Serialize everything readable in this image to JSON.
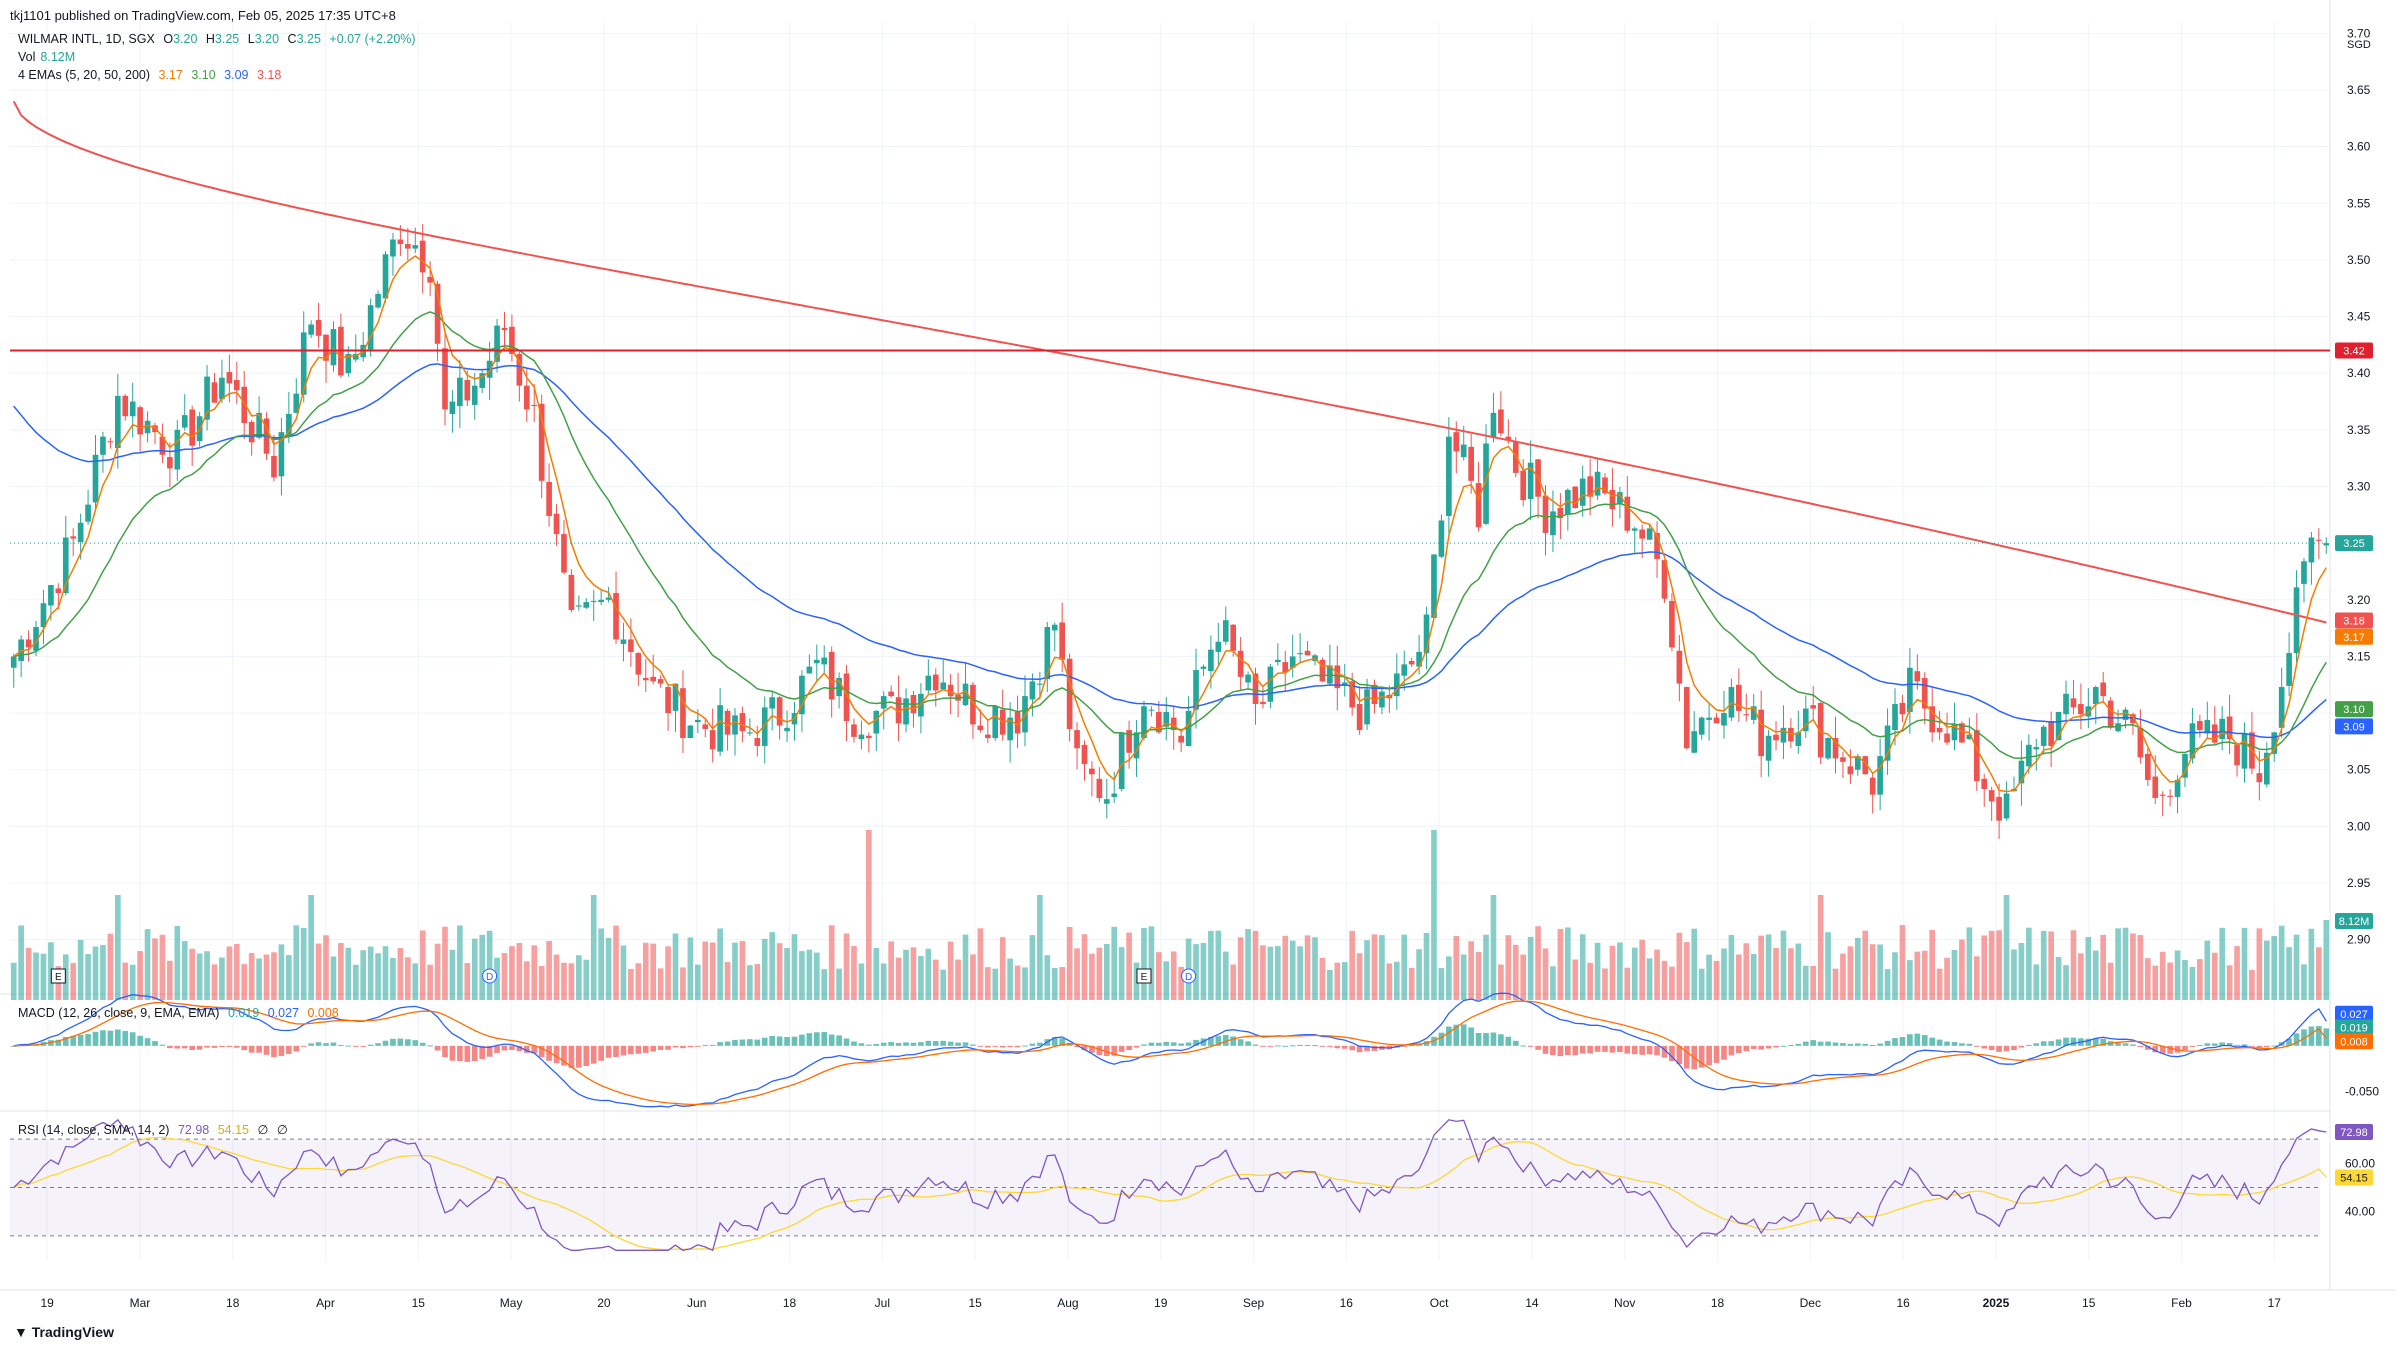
{
  "header": {
    "publisher": "tkj1101 published on TradingView.com, Feb 05, 2025 17:35 UTC+8"
  },
  "footer": {
    "brand": "TradingView"
  },
  "legend": {
    "symbol": "WILMAR INTL, 1D, SGX",
    "ohlc": {
      "o_label": "O",
      "o": "3.20",
      "h_label": "H",
      "h": "3.25",
      "l_label": "L",
      "l": "3.20",
      "c_label": "C",
      "c": "3.25",
      "change": "+0.07 (+2.20%)"
    },
    "vol": {
      "label": "Vol",
      "value": "8.12M"
    },
    "emas": {
      "label": "4 EMAs (5, 20, 50, 200)",
      "v5": "3.17",
      "v20": "3.10",
      "v50": "3.09",
      "v200": "3.18"
    },
    "macd": {
      "label": "MACD (12, 26, close, 9, EMA, EMA)",
      "hist": "0.019",
      "macd": "0.027",
      "signal": "0.008"
    },
    "rsi": {
      "label": "RSI (14, close, SMA, 14, 2)",
      "rsi": "72.98",
      "sma": "54.15",
      "extra1": "∅",
      "extra2": "∅"
    }
  },
  "colors": {
    "up": "#26a69a",
    "down": "#ef5350",
    "ema5": "#f57c00",
    "ema20": "#43a047",
    "ema50": "#2962ff",
    "ema200": "#ef5350",
    "hline": "#e0202e",
    "macd": "#2962ff",
    "signal": "#ff6d00",
    "rsi": "#7e57c2",
    "rsi_sma": "#fdd835"
  },
  "chart_data": {
    "type": "candlestick",
    "currency": "SGD",
    "price_ylim": [
      2.86,
      3.71
    ],
    "price_ticks": [
      "3.70",
      "3.65",
      "3.60",
      "3.55",
      "3.50",
      "3.45",
      "3.40",
      "3.35",
      "3.30",
      "3.25",
      "3.20",
      "3.15",
      "3.10",
      "3.05",
      "3.00",
      "2.95",
      "2.90"
    ],
    "x_labels": [
      "19",
      "Mar",
      "18",
      "Apr",
      "15",
      "May",
      "20",
      "Jun",
      "18",
      "Jul",
      "15",
      "Aug",
      "19",
      "Sep",
      "16",
      "Oct",
      "14",
      "Nov",
      "18",
      "Dec",
      "16",
      "2025",
      "15",
      "Feb",
      "17"
    ],
    "horizontal_line": 3.42,
    "last_close": 3.25,
    "price_badges": [
      {
        "value": "3.42",
        "kind": "hline"
      },
      {
        "value": "3.25",
        "kind": "close"
      },
      {
        "value": "3.18",
        "kind": "ema200"
      },
      {
        "value": "3.17",
        "kind": "ema5"
      },
      {
        "value": "3.10",
        "kind": "ema20"
      },
      {
        "value": "3.09",
        "kind": "ema50"
      },
      {
        "value": "8.12M",
        "kind": "vol"
      }
    ],
    "price_path": [
      [
        0,
        3.15
      ],
      [
        8,
        3.25
      ],
      [
        14,
        3.38
      ],
      [
        22,
        3.33
      ],
      [
        28,
        3.4
      ],
      [
        35,
        3.32
      ],
      [
        40,
        3.45
      ],
      [
        45,
        3.4
      ],
      [
        52,
        3.53
      ],
      [
        56,
        3.5
      ],
      [
        58,
        3.36
      ],
      [
        63,
        3.4
      ],
      [
        66,
        3.44
      ],
      [
        70,
        3.36
      ],
      [
        75,
        3.17
      ],
      [
        80,
        3.2
      ],
      [
        86,
        3.12
      ],
      [
        92,
        3.09
      ],
      [
        98,
        3.08
      ],
      [
        103,
        3.1
      ],
      [
        108,
        3.14
      ],
      [
        113,
        3.1
      ],
      [
        118,
        3.1
      ],
      [
        124,
        3.14
      ],
      [
        130,
        3.1
      ],
      [
        135,
        3.1
      ],
      [
        140,
        3.18
      ],
      [
        143,
        3.05
      ],
      [
        147,
        3.03
      ],
      [
        152,
        3.12
      ],
      [
        157,
        3.08
      ],
      [
        162,
        3.18
      ],
      [
        167,
        3.1
      ],
      [
        172,
        3.15
      ],
      [
        177,
        3.12
      ],
      [
        182,
        3.1
      ],
      [
        187,
        3.13
      ],
      [
        190,
        3.17
      ],
      [
        193,
        3.35
      ],
      [
        197,
        3.28
      ],
      [
        199,
        3.38
      ],
      [
        202,
        3.32
      ],
      [
        206,
        3.28
      ],
      [
        212,
        3.3
      ],
      [
        218,
        3.27
      ],
      [
        222,
        3.22
      ],
      [
        225,
        3.08
      ],
      [
        230,
        3.12
      ],
      [
        235,
        3.08
      ],
      [
        240,
        3.1
      ],
      [
        245,
        3.07
      ],
      [
        250,
        3.04
      ],
      [
        255,
        3.12
      ],
      [
        260,
        3.09
      ],
      [
        265,
        3.04
      ],
      [
        268,
        3.01
      ],
      [
        272,
        3.08
      ],
      [
        277,
        3.1
      ],
      [
        280,
        3.12
      ],
      [
        285,
        3.08
      ],
      [
        288,
        3.02
      ],
      [
        292,
        3.07
      ],
      [
        298,
        3.08
      ],
      [
        302,
        3.05
      ],
      [
        305,
        3.13
      ],
      [
        309,
        3.25
      ]
    ],
    "volume_peaks": [
      [
        14,
        "high"
      ],
      [
        40,
        "high"
      ],
      [
        78,
        "high"
      ],
      [
        115,
        "very_high"
      ],
      [
        138,
        "high"
      ],
      [
        191,
        "very_high"
      ],
      [
        199,
        "high"
      ],
      [
        243,
        "high"
      ],
      [
        268,
        "high"
      ]
    ],
    "ema_summary": {
      "ema5": 3.17,
      "ema20": 3.1,
      "ema50": 3.09,
      "ema200": 3.18
    },
    "macd": {
      "ylim": [
        -0.07,
        0.05
      ],
      "tick": "-0.050",
      "macd_last": 0.027,
      "signal_last": 0.008,
      "hist_last": 0.019
    },
    "rsi": {
      "ylim": [
        20,
        80
      ],
      "ticks": [
        "60.00",
        "40.00"
      ],
      "bands": [
        70,
        30
      ],
      "last": 72.98,
      "sma_last": 54.15
    },
    "events": [
      {
        "bar": 6,
        "label": "E"
      },
      {
        "bar": 64,
        "label": "D"
      },
      {
        "bar": 152,
        "label": "E"
      },
      {
        "bar": 158,
        "label": "D"
      }
    ]
  }
}
